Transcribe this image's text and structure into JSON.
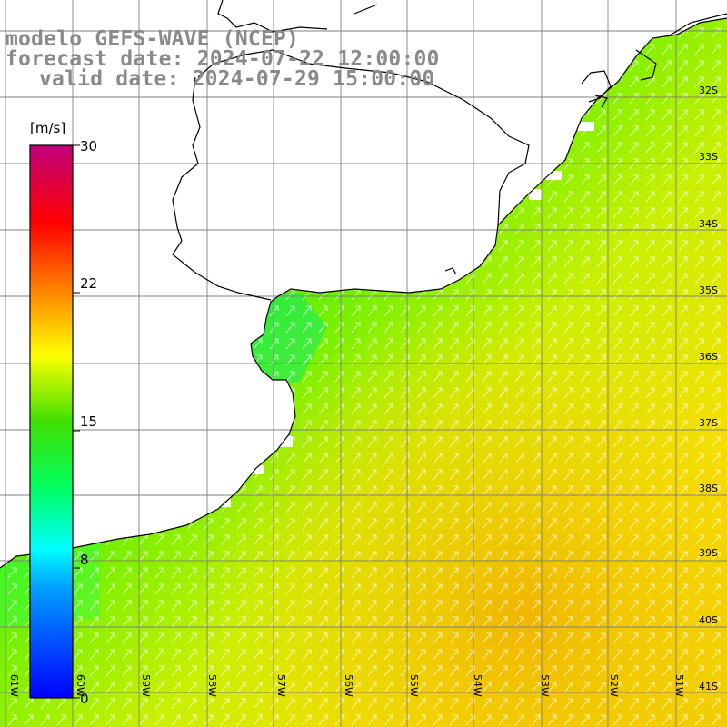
{
  "header": {
    "line1": "modelo GEFS-WAVE (NCEP)",
    "line2": "forecast date: 2024-07-22 12:00:00",
    "line3": "valid date: 2024-07-29 15:00:00"
  },
  "colorbar": {
    "unit": "[m/s]",
    "ticks": [
      "30",
      "22",
      "15",
      "8",
      "0"
    ],
    "min": 0,
    "max": 30,
    "colors": [
      "#0000ff",
      "#00c8ff",
      "#00ffff",
      "#00ff80",
      "#00e000",
      "#80ff00",
      "#ffff00",
      "#ffa000",
      "#ff4000",
      "#ff0000",
      "#c0007a"
    ]
  },
  "map": {
    "lat_labels": [
      "32S",
      "33S",
      "34S",
      "35S",
      "36S",
      "37S",
      "38S",
      "39S",
      "40S",
      "41S"
    ],
    "lon_labels": [
      "61W",
      "60W",
      "59W",
      "58W",
      "57W",
      "56W",
      "55W",
      "54W",
      "53W",
      "52W",
      "51W"
    ],
    "wind_direction": "toward north-east",
    "land_color": "#ffffff",
    "grid_color": "#808080",
    "coast_color": "#000000",
    "arrow_color": "#ffffff"
  }
}
